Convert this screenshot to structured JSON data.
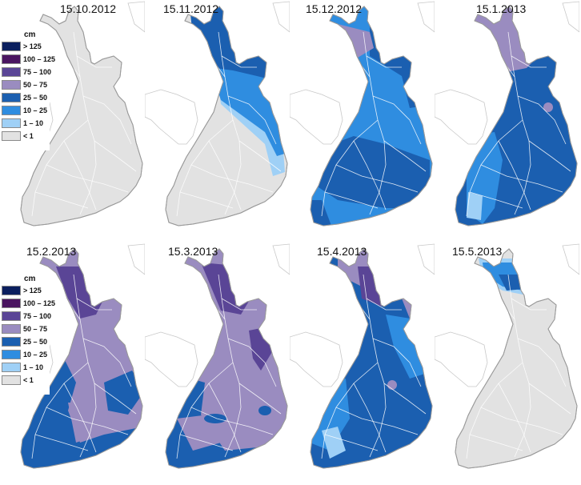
{
  "colors": {
    "c_gt125": "#0b1f5e",
    "c_100_125": "#4a1560",
    "c_75_100": "#5a4596",
    "c_50_75": "#9a8cc0",
    "c_25_50": "#1b5fb0",
    "c_10_25": "#2f8de0",
    "c_1_10": "#9fd0f6",
    "c_lt1": "#e2e2e2",
    "outline": "#9a9a9a",
    "roads": "#ffffff",
    "neighbour": "#c8c8c8"
  },
  "legend": {
    "unit": "cm",
    "items": [
      {
        "label": "> 125",
        "color": "#0b1f5e"
      },
      {
        "label": "100 – 125",
        "color": "#4a1560"
      },
      {
        "label": "75 – 100",
        "color": "#5a4596"
      },
      {
        "label": "50 – 75",
        "color": "#9a8cc0"
      },
      {
        "label": "25 – 50",
        "color": "#1b5fb0"
      },
      {
        "label": "10 – 25",
        "color": "#2f8de0"
      },
      {
        "label": "1 – 10",
        "color": "#9fd0f6"
      },
      {
        "label": "< 1",
        "color": "#e2e2e2"
      }
    ]
  },
  "maps": [
    {
      "date": "15.10.2012"
    },
    {
      "date": "15.11.2012"
    },
    {
      "date": "15.12.2012"
    },
    {
      "date": "15.1.2013"
    },
    {
      "date": "15.2.2013"
    },
    {
      "date": "15.3.2013"
    },
    {
      "date": "15.4.2013"
    },
    {
      "date": "15.5.2013"
    }
  ]
}
